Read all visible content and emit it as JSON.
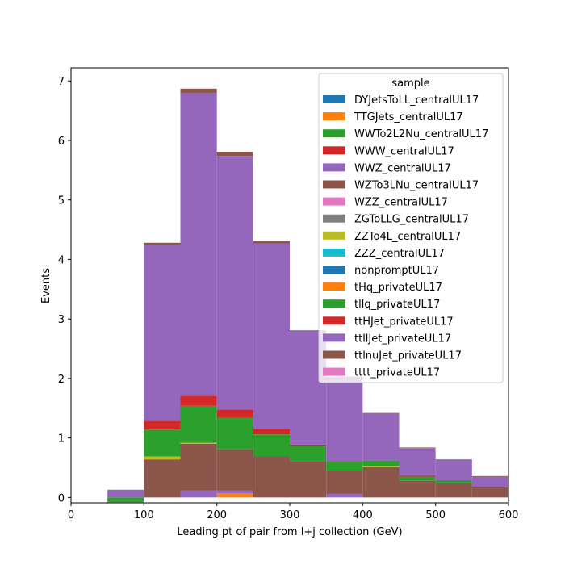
{
  "chart_data": {
    "type": "bar",
    "stacked": true,
    "histogram": true,
    "title": "",
    "xlabel": "Leading pt of pair from l+j collection (GeV)",
    "ylabel": "Events",
    "xlim": [
      0,
      600
    ],
    "ylim": [
      -0.09,
      7.22
    ],
    "xticks": [
      "0",
      "100",
      "200",
      "300",
      "400",
      "500",
      "600"
    ],
    "yticks": [
      "0",
      "1",
      "2",
      "3",
      "4",
      "5",
      "6",
      "7"
    ],
    "bin_edges": [
      50,
      100,
      150,
      200,
      250,
      300,
      350,
      400,
      450,
      500,
      550,
      600
    ],
    "legend": {
      "title": "sample",
      "placement": "top-right"
    },
    "series": [
      {
        "name": "DYJetsToLL_centralUL17",
        "color": "#1f77b4",
        "values": [
          0,
          0,
          0,
          0,
          0,
          0,
          0,
          0,
          0,
          0,
          0
        ]
      },
      {
        "name": "TTGJets_centralUL17",
        "color": "#ff7f0e",
        "values": [
          0,
          0,
          0,
          0.07,
          0,
          0,
          0,
          0,
          0,
          0,
          0
        ]
      },
      {
        "name": "WWTo2L2Nu_centralUL17",
        "color": "#2ca02c",
        "values": [
          -0.05,
          0,
          0,
          0,
          0,
          0,
          0,
          0,
          0,
          0,
          0
        ]
      },
      {
        "name": "WWW_centralUL17",
        "color": "#d62728",
        "values": [
          0,
          0,
          0,
          0,
          0,
          0,
          0,
          0,
          0,
          0,
          0
        ]
      },
      {
        "name": "WWZ_centralUL17",
        "color": "#9467bd",
        "values": [
          0.12,
          0,
          0.12,
          0.05,
          0,
          0,
          0.06,
          0,
          0,
          0,
          0
        ]
      },
      {
        "name": "WZTo3LNu_centralUL17",
        "color": "#8c564b",
        "values": [
          0,
          0.64,
          0.78,
          0.69,
          0.69,
          0.61,
          0.39,
          0.51,
          0.28,
          0.24,
          0.17
        ]
      },
      {
        "name": "WZZ_centralUL17",
        "color": "#e377c2",
        "values": [
          0,
          0,
          0,
          0,
          0,
          0,
          0,
          0,
          0,
          0,
          0
        ]
      },
      {
        "name": "ZGToLLG_centralUL17",
        "color": "#7f7f7f",
        "values": [
          0,
          0,
          0,
          0,
          0,
          0,
          0,
          0,
          0,
          0,
          0
        ]
      },
      {
        "name": "ZZTo4L_centralUL17",
        "color": "#bcbd22",
        "values": [
          0,
          0.05,
          0.02,
          0,
          0,
          0,
          0,
          0.01,
          0,
          0,
          0
        ]
      },
      {
        "name": "ZZZ_centralUL17",
        "color": "#17becf",
        "values": [
          0,
          0,
          0,
          0,
          0,
          0,
          0,
          0,
          0,
          0,
          0
        ]
      },
      {
        "name": "nonpromptUL17",
        "color": "#1f77b4",
        "values": [
          0,
          0,
          0,
          0,
          0,
          0,
          0,
          0,
          0,
          0,
          0
        ]
      },
      {
        "name": "tHq_privateUL17",
        "color": "#ff7f0e",
        "values": [
          0,
          0,
          0,
          0,
          0,
          0,
          0,
          0,
          0,
          0,
          0
        ]
      },
      {
        "name": "tllq_privateUL17",
        "color": "#2ca02c",
        "values": [
          -0.03,
          0.45,
          0.62,
          0.53,
          0.37,
          0.26,
          0.15,
          0.1,
          0.07,
          0.05,
          0.01
        ]
      },
      {
        "name": "ttHJet_privateUL17",
        "color": "#d62728",
        "values": [
          0,
          0.15,
          0.17,
          0.14,
          0.09,
          0.02,
          0.01,
          0,
          0.02,
          0,
          0
        ]
      },
      {
        "name": "ttllJet_privateUL17",
        "color": "#9467bd",
        "values": [
          0.01,
          2.95,
          5.09,
          4.26,
          3.12,
          1.91,
          1.41,
          0.79,
          0.46,
          0.34,
          0.17
        ]
      },
      {
        "name": "ttlnuJet_privateUL17",
        "color": "#8c564b",
        "values": [
          0,
          0.04,
          0.07,
          0.07,
          0.04,
          0.01,
          0.01,
          0.01,
          0.01,
          0.01,
          0.01
        ]
      },
      {
        "name": "tttt_privateUL17",
        "color": "#e377c2",
        "values": [
          0,
          0,
          0,
          0,
          0,
          0,
          0,
          0,
          0,
          0,
          0
        ]
      }
    ]
  }
}
